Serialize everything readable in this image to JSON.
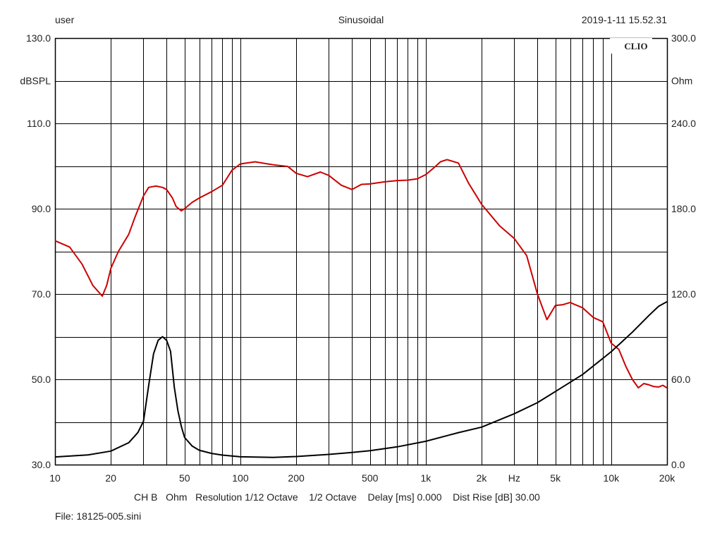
{
  "header": {
    "left": "user",
    "center": "Sinusoidal",
    "right": "2019-1-11 15.52.31"
  },
  "watermark": "CLIO",
  "footer": {
    "settings": "CH B   Ohm   Resolution 1/12 Octave    1/2 Octave    Delay [ms] 0.000    Dist Rise [dB] 30.00",
    "file": "File: 18125-005.sini"
  },
  "chart_data": {
    "type": "line",
    "x_scale": "log",
    "xlim": [
      10,
      20000
    ],
    "x_unit": "Hz",
    "x_ticks": [
      {
        "value": 10,
        "label": "10"
      },
      {
        "value": 20,
        "label": "20"
      },
      {
        "value": 50,
        "label": "50"
      },
      {
        "value": 100,
        "label": "100"
      },
      {
        "value": 200,
        "label": "200"
      },
      {
        "value": 500,
        "label": "500"
      },
      {
        "value": 1000,
        "label": "1k"
      },
      {
        "value": 2000,
        "label": "2k"
      },
      {
        "value": 5000,
        "label": "5k"
      },
      {
        "value": 10000,
        "label": "10k"
      },
      {
        "value": 20000,
        "label": "20k"
      }
    ],
    "y_left": {
      "label": "dBSPL",
      "range": [
        30,
        130
      ],
      "ticks": [
        "130.0",
        "110.0",
        "90.0",
        "70.0",
        "50.0",
        "30.0"
      ]
    },
    "y_right": {
      "label": "Ohm",
      "range": [
        0,
        300
      ],
      "ticks": [
        "300.0",
        "240.0",
        "180.0",
        "120.0",
        "60.0",
        "0.0"
      ]
    },
    "grid": true,
    "series": [
      {
        "axis": "left",
        "color": "#cc0000",
        "x": [
          10,
          12,
          14,
          16,
          18,
          19,
          20,
          22,
          25,
          27,
          30,
          32,
          35,
          38,
          40,
          43,
          45,
          48,
          50,
          55,
          60,
          70,
          80,
          90,
          100,
          120,
          150,
          180,
          200,
          230,
          270,
          300,
          350,
          400,
          450,
          500,
          600,
          700,
          800,
          900,
          1000,
          1100,
          1200,
          1300,
          1500,
          1700,
          2000,
          2500,
          3000,
          3500,
          4000,
          4500,
          5000,
          5500,
          6000,
          7000,
          8000,
          9000,
          10000,
          11000,
          12000,
          13000,
          14000,
          15000,
          16000,
          17000,
          18000,
          19000,
          20000
        ],
        "y": [
          82.5,
          81,
          77,
          72,
          69.5,
          72,
          76,
          80,
          84,
          88,
          93,
          95,
          95.3,
          95,
          94.5,
          92.5,
          90.5,
          89.5,
          90,
          91.5,
          92.5,
          94,
          95.5,
          99,
          100.5,
          101,
          100.3,
          99.9,
          98.3,
          97.5,
          98.6,
          97.8,
          95.5,
          94.5,
          95.7,
          95.8,
          96.3,
          96.6,
          96.7,
          97,
          98,
          99.5,
          101,
          101.5,
          100.7,
          96,
          91,
          86,
          83,
          79,
          70,
          64,
          67.3,
          67.5,
          68,
          66.8,
          64.5,
          63.5,
          58.5,
          57,
          53,
          50,
          48,
          49,
          48.7,
          48.3,
          48.2,
          48.6,
          48
        ]
      },
      {
        "axis": "right",
        "color": "#000000",
        "x": [
          10,
          15,
          20,
          25,
          28,
          30,
          32,
          34,
          36,
          38,
          40,
          42,
          44,
          46,
          48,
          50,
          55,
          60,
          70,
          80,
          100,
          150,
          200,
          300,
          400,
          500,
          700,
          1000,
          1500,
          2000,
          3000,
          4000,
          5000,
          7000,
          10000,
          13000,
          16000,
          18000,
          20000
        ],
        "y": [
          5.4,
          6.8,
          9.5,
          15.4,
          22.6,
          30.5,
          55.5,
          78,
          87.4,
          90,
          87.4,
          79.7,
          54.5,
          38,
          27,
          19.1,
          13,
          10.1,
          7.9,
          6.7,
          5.5,
          5.1,
          5.7,
          7.2,
          8.6,
          9.8,
          12.5,
          16.4,
          22.5,
          26.4,
          35.8,
          43.6,
          51.4,
          63.3,
          79.4,
          93.1,
          105,
          111.3,
          114.6
        ]
      }
    ]
  }
}
